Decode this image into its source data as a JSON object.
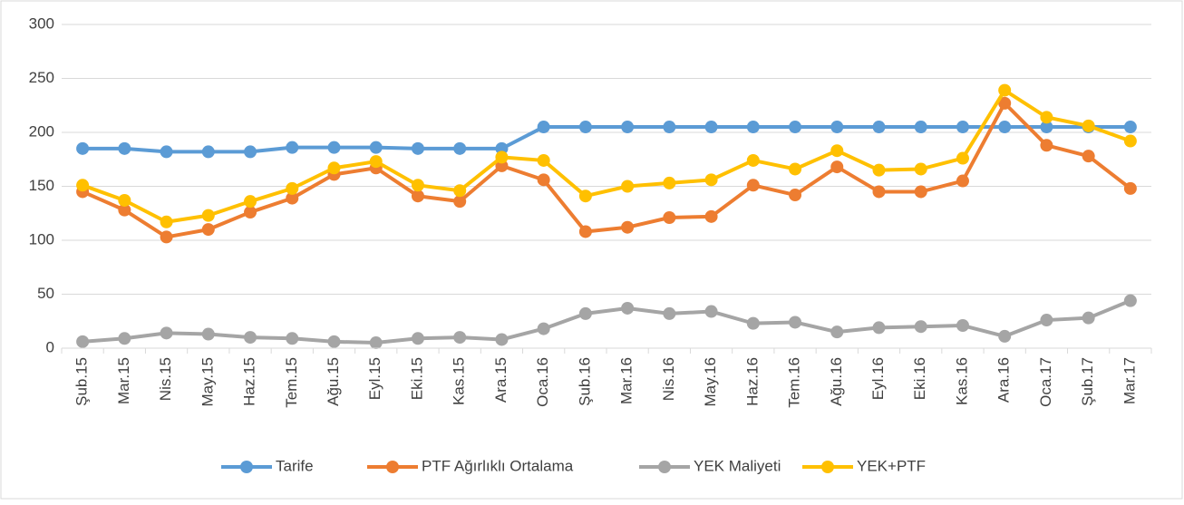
{
  "chart_data": {
    "type": "line",
    "categories": [
      "Şub.15",
      "Mar.15",
      "Nis.15",
      "May.15",
      "Haz.15",
      "Tem.15",
      "Ağu.15",
      "Eyl.15",
      "Eki.15",
      "Kas.15",
      "Ara.15",
      "Oca.16",
      "Şub.16",
      "Mar.16",
      "Nis.16",
      "May.16",
      "Haz.16",
      "Tem.16",
      "Ağu.16",
      "Eyl.16",
      "Eki.16",
      "Kas.16",
      "Ara.16",
      "Oca.17",
      "Şub.17",
      "Mar.17"
    ],
    "series": [
      {
        "name": "Tarife",
        "color": "#5B9BD5",
        "values": [
          185,
          185,
          182,
          182,
          182,
          186,
          186,
          186,
          185,
          185,
          185,
          205,
          205,
          205,
          205,
          205,
          205,
          205,
          205,
          205,
          205,
          205,
          205,
          205,
          205,
          205
        ]
      },
      {
        "name": "PTF Ağırlıklı Ortalama",
        "color": "#ED7D31",
        "values": [
          145,
          128,
          103,
          110,
          126,
          139,
          161,
          167,
          141,
          136,
          169,
          156,
          108,
          112,
          121,
          122,
          151,
          142,
          168,
          145,
          145,
          155,
          227,
          188,
          178,
          148
        ]
      },
      {
        "name": "YEK Maliyeti",
        "color": "#A5A5A5",
        "values": [
          6,
          9,
          14,
          13,
          10,
          9,
          6,
          5,
          9,
          10,
          8,
          18,
          32,
          37,
          32,
          34,
          23,
          24,
          15,
          19,
          20,
          21,
          11,
          26,
          28,
          44
        ]
      },
      {
        "name": "YEK+PTF",
        "color": "#FFC000",
        "values": [
          151,
          137,
          117,
          123,
          136,
          148,
          167,
          173,
          151,
          146,
          177,
          174,
          141,
          150,
          153,
          156,
          174,
          166,
          183,
          165,
          166,
          176,
          239,
          214,
          206,
          192
        ]
      }
    ],
    "ylim": [
      0,
      300
    ],
    "yticks": [
      0,
      50,
      100,
      150,
      200,
      250,
      300
    ],
    "grid": true,
    "legend": "bottom"
  }
}
